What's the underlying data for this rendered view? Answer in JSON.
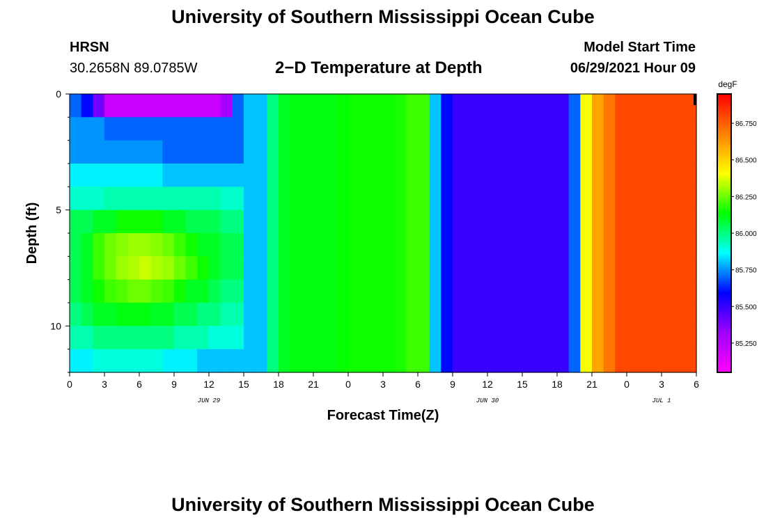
{
  "page": {
    "title_top": "University of Southern Mississippi Ocean Cube",
    "title_bottom": "University of Southern Mississippi Ocean Cube",
    "station": "HRSN",
    "coords": "30.2658N  89.0785W",
    "plot_title": "2−D Temperature at Depth",
    "model_start_label": "Model Start Time",
    "model_start_value": "06/29/2021 Hour 09"
  },
  "chart_data": {
    "type": "heatmap",
    "title": "2−D Temperature at Depth",
    "xlabel": "Forecast Time(Z)",
    "ylabel": "Depth (ft)",
    "colorbar_unit": "degF",
    "xlim_hours": [
      0,
      54
    ],
    "ylim_ft": [
      0,
      12
    ],
    "x_tick_labels": [
      "0",
      "3",
      "6",
      "9",
      "12",
      "15",
      "18",
      "21",
      "0",
      "3",
      "6",
      "9",
      "12",
      "15",
      "18",
      "21",
      "0",
      "3",
      "6"
    ],
    "y_tick_values": [
      0,
      5,
      10
    ],
    "y_tick_labels": [
      "0",
      "5",
      "10"
    ],
    "date_labels": [
      {
        "label": "JUN 29",
        "hour": 12
      },
      {
        "label": "JUN 30",
        "hour": 36
      },
      {
        "label": "JUL 1",
        "hour": 51
      }
    ],
    "color_scale": {
      "min": 85.05,
      "max": 86.95,
      "ticks": [
        85.25,
        85.5,
        85.75,
        86.0,
        86.25,
        86.5,
        86.75
      ],
      "tick_labels": [
        "85.250",
        "85.500",
        "85.750",
        "86.000",
        "86.250",
        "86.500",
        "86.750"
      ],
      "colors": [
        "#ff00ff",
        "#a000ff",
        "#0000ff",
        "#00ffff",
        "#00ff00",
        "#ffff00",
        "#ff8000",
        "#ff0000"
      ]
    },
    "time_hours": [
      0,
      1,
      2,
      3,
      4,
      5,
      6,
      7,
      8,
      9,
      10,
      11,
      12,
      13,
      14,
      15,
      16,
      17,
      18,
      19,
      20,
      21,
      22,
      23,
      24,
      25,
      26,
      27,
      28,
      29,
      30,
      31,
      32,
      33,
      34,
      35,
      36,
      37,
      38,
      39,
      40,
      41,
      42,
      43,
      44,
      45,
      46,
      47,
      48,
      49,
      50,
      51,
      52,
      53
    ],
    "depth_layers_ft": [
      0.5,
      1.5,
      2.5,
      3.5,
      4.5,
      5.5,
      6.5,
      7.5,
      8.5,
      9.5,
      10.5,
      11.5
    ],
    "temperatures_degF": [
      [
        85.7,
        85.6,
        85.4,
        85.2,
        85.2,
        85.2,
        85.2,
        85.2,
        85.2,
        85.2,
        85.2,
        85.2,
        85.2,
        85.3,
        85.7,
        85.8,
        85.8,
        86.0,
        86.1,
        86.12,
        86.12,
        86.12,
        86.12,
        86.14,
        86.15,
        86.15,
        86.15,
        86.15,
        86.16,
        86.2,
        86.2,
        85.8,
        85.6,
        85.5,
        85.5,
        85.5,
        85.5,
        85.5,
        85.5,
        85.5,
        85.5,
        85.5,
        85.5,
        85.7,
        86.4,
        86.6,
        86.7,
        86.8,
        86.8,
        86.8,
        86.8,
        86.8,
        86.8,
        86.8
      ],
      [
        85.75,
        85.75,
        85.75,
        85.7,
        85.7,
        85.7,
        85.7,
        85.7,
        85.7,
        85.7,
        85.7,
        85.7,
        85.7,
        85.7,
        85.7,
        85.8,
        85.8,
        86.0,
        86.1,
        86.12,
        86.12,
        86.12,
        86.12,
        86.14,
        86.15,
        86.15,
        86.15,
        86.15,
        86.16,
        86.2,
        86.2,
        85.8,
        85.6,
        85.5,
        85.5,
        85.5,
        85.5,
        85.5,
        85.5,
        85.5,
        85.5,
        85.5,
        85.5,
        85.7,
        86.4,
        86.6,
        86.7,
        86.8,
        86.8,
        86.8,
        86.8,
        86.8,
        86.8,
        86.8
      ],
      [
        85.75,
        85.75,
        85.75,
        85.75,
        85.75,
        85.75,
        85.75,
        85.75,
        85.7,
        85.7,
        85.7,
        85.7,
        85.7,
        85.7,
        85.7,
        85.8,
        85.8,
        86.0,
        86.1,
        86.12,
        86.12,
        86.12,
        86.12,
        86.14,
        86.15,
        86.15,
        86.15,
        86.15,
        86.16,
        86.2,
        86.2,
        85.8,
        85.6,
        85.5,
        85.5,
        85.5,
        85.5,
        85.5,
        85.5,
        85.5,
        85.5,
        85.5,
        85.5,
        85.7,
        86.4,
        86.6,
        86.7,
        86.8,
        86.8,
        86.8,
        86.8,
        86.8,
        86.8,
        86.8
      ],
      [
        85.85,
        85.85,
        85.85,
        85.85,
        85.85,
        85.85,
        85.85,
        85.85,
        85.8,
        85.8,
        85.8,
        85.8,
        85.8,
        85.8,
        85.8,
        85.8,
        85.8,
        86.0,
        86.1,
        86.12,
        86.12,
        86.12,
        86.12,
        86.14,
        86.15,
        86.15,
        86.15,
        86.15,
        86.16,
        86.2,
        86.2,
        85.8,
        85.6,
        85.5,
        85.5,
        85.5,
        85.5,
        85.5,
        85.5,
        85.5,
        85.5,
        85.5,
        85.5,
        85.7,
        86.4,
        86.6,
        86.7,
        86.8,
        86.8,
        86.8,
        86.8,
        86.8,
        86.8,
        86.8
      ],
      [
        85.92,
        85.92,
        85.92,
        85.95,
        85.95,
        85.95,
        85.95,
        85.95,
        85.95,
        85.95,
        85.95,
        85.95,
        85.95,
        85.92,
        85.92,
        85.8,
        85.8,
        86.0,
        86.1,
        86.12,
        86.12,
        86.12,
        86.12,
        86.14,
        86.15,
        86.15,
        86.15,
        86.15,
        86.16,
        86.2,
        86.2,
        85.8,
        85.6,
        85.5,
        85.5,
        85.5,
        85.5,
        85.5,
        85.5,
        85.5,
        85.5,
        85.5,
        85.5,
        85.7,
        86.4,
        86.6,
        86.7,
        86.8,
        86.8,
        86.8,
        86.8,
        86.8,
        86.8,
        86.8
      ],
      [
        86.05,
        86.05,
        86.1,
        86.1,
        86.15,
        86.15,
        86.15,
        86.15,
        86.1,
        86.1,
        86.05,
        86.05,
        86.05,
        86.0,
        86.0,
        85.8,
        85.8,
        86.0,
        86.1,
        86.12,
        86.12,
        86.12,
        86.12,
        86.14,
        86.15,
        86.15,
        86.15,
        86.15,
        86.16,
        86.2,
        86.2,
        85.8,
        85.6,
        85.5,
        85.5,
        85.5,
        85.5,
        85.5,
        85.5,
        85.5,
        85.5,
        85.5,
        85.5,
        85.7,
        86.4,
        86.6,
        86.7,
        86.8,
        86.8,
        86.8,
        86.8,
        86.8,
        86.8,
        86.8
      ],
      [
        86.05,
        86.1,
        86.2,
        86.25,
        86.28,
        86.3,
        86.3,
        86.28,
        86.25,
        86.2,
        86.15,
        86.1,
        86.1,
        86.05,
        86.05,
        85.8,
        85.8,
        86.0,
        86.1,
        86.12,
        86.12,
        86.12,
        86.12,
        86.14,
        86.15,
        86.15,
        86.15,
        86.15,
        86.16,
        86.2,
        86.2,
        85.8,
        85.6,
        85.5,
        85.5,
        85.5,
        85.5,
        85.5,
        85.5,
        85.5,
        85.5,
        85.5,
        85.5,
        85.7,
        86.4,
        86.6,
        86.7,
        86.8,
        86.8,
        86.8,
        86.8,
        86.8,
        86.8,
        86.8
      ],
      [
        86.05,
        86.1,
        86.2,
        86.25,
        86.3,
        86.32,
        86.35,
        86.32,
        86.3,
        86.25,
        86.2,
        86.15,
        86.1,
        86.05,
        86.05,
        85.8,
        85.8,
        86.0,
        86.1,
        86.12,
        86.12,
        86.12,
        86.12,
        86.14,
        86.15,
        86.15,
        86.15,
        86.15,
        86.16,
        86.2,
        86.2,
        85.8,
        85.6,
        85.5,
        85.5,
        85.5,
        85.5,
        85.5,
        85.5,
        85.5,
        85.5,
        85.5,
        85.5,
        85.7,
        86.4,
        86.6,
        86.7,
        86.8,
        86.8,
        86.8,
        86.8,
        86.8,
        86.8,
        86.8
      ],
      [
        86.05,
        86.1,
        86.15,
        86.2,
        86.22,
        86.25,
        86.25,
        86.22,
        86.2,
        86.15,
        86.1,
        86.1,
        86.05,
        86.0,
        86.0,
        85.8,
        85.8,
        86.0,
        86.1,
        86.12,
        86.12,
        86.12,
        86.12,
        86.14,
        86.15,
        86.15,
        86.15,
        86.15,
        86.16,
        86.2,
        86.2,
        85.8,
        85.6,
        85.5,
        85.5,
        85.5,
        85.5,
        85.5,
        85.5,
        85.5,
        85.5,
        85.5,
        85.5,
        85.7,
        86.4,
        86.6,
        86.7,
        86.8,
        86.8,
        86.8,
        86.8,
        86.8,
        86.8,
        86.8
      ],
      [
        86.0,
        86.05,
        86.1,
        86.1,
        86.12,
        86.12,
        86.12,
        86.1,
        86.1,
        86.05,
        86.05,
        86.0,
        86.0,
        85.95,
        85.95,
        85.8,
        85.8,
        86.0,
        86.1,
        86.12,
        86.12,
        86.12,
        86.12,
        86.14,
        86.15,
        86.15,
        86.15,
        86.15,
        86.16,
        86.2,
        86.2,
        85.8,
        85.6,
        85.5,
        85.5,
        85.5,
        85.5,
        85.5,
        85.5,
        85.5,
        85.5,
        85.5,
        85.5,
        85.7,
        86.4,
        86.6,
        86.7,
        86.8,
        86.8,
        86.8,
        86.8,
        86.8,
        86.8,
        86.8
      ],
      [
        85.95,
        85.95,
        86.0,
        86.0,
        86.0,
        86.0,
        86.0,
        86.0,
        86.0,
        85.95,
        85.95,
        85.95,
        85.9,
        85.9,
        85.9,
        85.8,
        85.8,
        86.0,
        86.1,
        86.12,
        86.12,
        86.12,
        86.12,
        86.14,
        86.15,
        86.15,
        86.15,
        86.15,
        86.16,
        86.2,
        86.2,
        85.8,
        85.6,
        85.5,
        85.5,
        85.5,
        85.5,
        85.5,
        85.5,
        85.5,
        85.5,
        85.5,
        85.5,
        85.7,
        86.4,
        86.6,
        86.7,
        86.8,
        86.8,
        86.8,
        86.8,
        86.8,
        86.8,
        86.8
      ],
      [
        85.85,
        85.85,
        85.9,
        85.9,
        85.9,
        85.9,
        85.9,
        85.9,
        85.85,
        85.85,
        85.85,
        85.8,
        85.8,
        85.8,
        85.8,
        85.8,
        85.8,
        86.0,
        86.1,
        86.12,
        86.12,
        86.12,
        86.12,
        86.14,
        86.15,
        86.15,
        86.15,
        86.15,
        86.16,
        86.2,
        86.2,
        85.8,
        85.6,
        85.5,
        85.5,
        85.5,
        85.5,
        85.5,
        85.5,
        85.5,
        85.5,
        85.5,
        85.5,
        85.7,
        86.4,
        86.6,
        86.7,
        86.8,
        86.8,
        86.8,
        86.8,
        86.8,
        86.8,
        86.8
      ]
    ]
  }
}
